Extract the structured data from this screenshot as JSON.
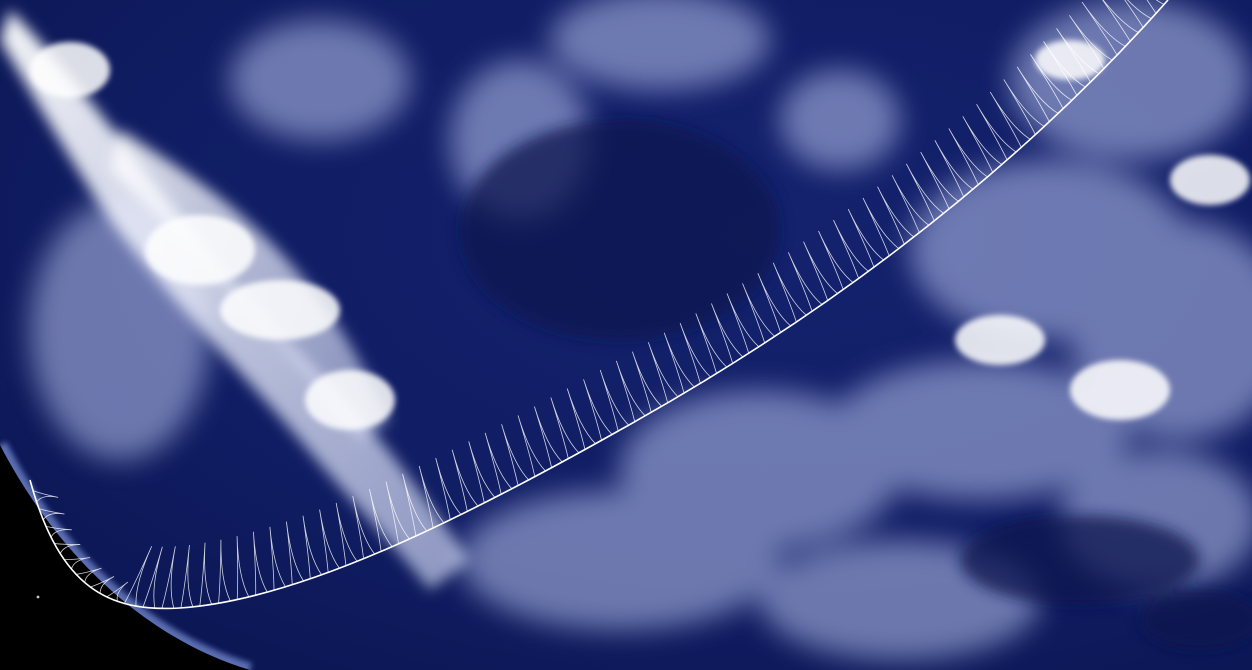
{
  "scene": {
    "subject": "earth-limb-with-orbit-trace",
    "colors": {
      "space": "#000000",
      "ocean_deep": "#0c1a5e",
      "ocean_mid": "#16287a",
      "cloud": "#f2f4ff",
      "cloud_soft": "#b9c3ee",
      "atmosphere": "#9fb7ff",
      "trace": "#ffffff"
    }
  }
}
